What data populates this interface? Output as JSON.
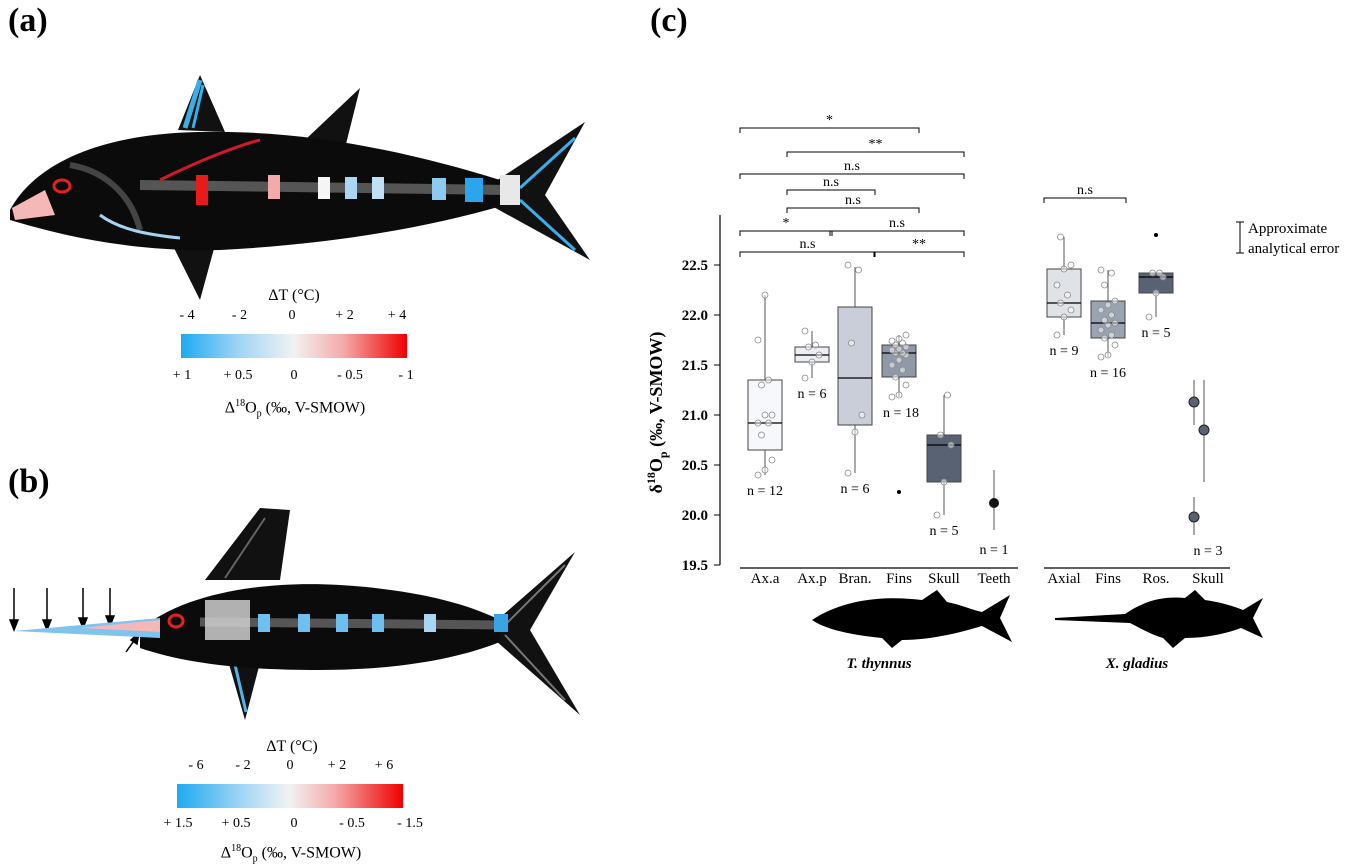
{
  "panels": {
    "a": "(a)",
    "b": "(b)",
    "c": "(c)"
  },
  "colorbar_a": {
    "top_title": "ΔT (°C)",
    "top_ticks": [
      "- 4",
      "- 2",
      "0",
      "+ 2",
      "+ 4"
    ],
    "bottom_ticks": [
      "+ 1",
      "+ 0.5",
      "0",
      "- 0.5",
      "- 1"
    ],
    "bottom_title_main": "Δ",
    "bottom_title_sup": "18",
    "bottom_title_rest": "O",
    "bottom_title_sub": "p",
    "bottom_title_unit": " (‰, V-SMOW)",
    "colors": [
      "#1eaaf0",
      "#ffffff",
      "#f00000"
    ]
  },
  "colorbar_b": {
    "top_title": "ΔT (°C)",
    "top_ticks": [
      "- 6",
      "- 2",
      "0",
      "+ 2",
      "+ 6"
    ],
    "bottom_ticks": [
      "+ 1.5",
      "+ 0.5",
      "0",
      "- 0.5",
      "- 1.5"
    ],
    "bottom_title_main": "Δ",
    "bottom_title_sup": "18",
    "bottom_title_rest": "O",
    "bottom_title_sub": "p",
    "bottom_title_unit": " (‰, V-SMOW)"
  },
  "chart_data": {
    "type": "box",
    "ylabel_main": "δ",
    "ylabel_sup": "18",
    "ylabel_rest": "O",
    "ylabel_sub": "p",
    "ylabel_unit": " (‰, V-SMOW)",
    "ylim": [
      19.5,
      22.75
    ],
    "yticks": [
      "19.5",
      "20.0",
      "20.5",
      "21.0",
      "21.5",
      "22.0",
      "22.5"
    ],
    "error_legend": "Approximate\nanalytical error",
    "groups": [
      {
        "species": "T. thynnus",
        "categories": [
          "Ax.a",
          "Ax.p",
          "Bran.",
          "Fins",
          "Skull",
          "Teeth"
        ],
        "boxes": [
          {
            "name": "Ax.a",
            "q1": 20.65,
            "median": 20.92,
            "q3": 21.35,
            "whisker_low": 20.4,
            "whisker_high": 22.2,
            "n": "n = 12",
            "color": "#f7f8fb",
            "points": [
              20.4,
              20.45,
              20.55,
              20.8,
              20.92,
              20.92,
              21.0,
              21.0,
              21.3,
              21.35,
              21.75,
              22.2
            ]
          },
          {
            "name": "Ax.p",
            "q1": 21.53,
            "median": 21.6,
            "q3": 21.68,
            "whisker_low": 21.37,
            "whisker_high": 21.84,
            "n": "n = 6",
            "color": "#eceef4",
            "points": [
              21.37,
              21.53,
              21.6,
              21.68,
              21.7,
              21.84
            ]
          },
          {
            "name": "Bran.",
            "q1": 20.9,
            "median": 21.37,
            "q3": 22.08,
            "whisker_low": 20.42,
            "whisker_high": 22.48,
            "n": "n = 6",
            "color": "#c9ced8",
            "points": [
              20.42,
              20.83,
              21.0,
              21.72,
              22.45,
              22.5
            ]
          },
          {
            "name": "Fins",
            "q1": 21.38,
            "median": 21.62,
            "q3": 21.7,
            "whisker_low": 21.18,
            "whisker_high": 21.8,
            "outliers": [
              20.23
            ],
            "n": "n = 18",
            "color": "#8f99a8",
            "points": [
              21.18,
              21.2,
              21.3,
              21.38,
              21.45,
              21.5,
              21.55,
              21.6,
              21.62,
              21.62,
              21.65,
              21.66,
              21.68,
              21.7,
              21.72,
              21.74,
              21.76,
              21.8
            ]
          },
          {
            "name": "Skull",
            "q1": 20.33,
            "median": 20.7,
            "q3": 20.8,
            "whisker_low": 20.0,
            "whisker_high": 21.2,
            "n": "n = 5",
            "color": "#586273",
            "points": [
              20.0,
              20.33,
              20.7,
              20.8,
              21.2
            ]
          },
          {
            "name": "Teeth",
            "point": 20.12,
            "err_low": 19.85,
            "err_high": 20.45,
            "n": "n = 1",
            "color": "#111111"
          }
        ],
        "brackets": [
          {
            "from": "Ax.a",
            "to": "Fins",
            "label": "*"
          },
          {
            "from": "Ax.p",
            "to": "Skull",
            "label": "**"
          },
          {
            "from": "Ax.a",
            "to": "Skull",
            "label": "n.s"
          },
          {
            "from": "Ax.p",
            "to": "Bran.",
            "label": "n.s"
          },
          {
            "from": "Ax.p",
            "to": "Fins",
            "label": "n.s"
          },
          {
            "from": "Ax.a",
            "to": "Ax.p",
            "label": "*"
          },
          {
            "from": "Bran.",
            "to": "Skull",
            "label": "n.s"
          },
          {
            "from": "Ax.a",
            "to": "Bran.",
            "label": "n.s"
          },
          {
            "from": "Fins",
            "to": "Skull",
            "label": "**"
          }
        ]
      },
      {
        "species": "X. gladius",
        "categories": [
          "Axial",
          "Fins",
          "Ros.",
          "Skull"
        ],
        "boxes": [
          {
            "name": "Axial",
            "q1": 21.98,
            "median": 22.12,
            "q3": 22.46,
            "whisker_low": 21.8,
            "whisker_high": 22.78,
            "n": "n = 9",
            "color": "#dfe2e6",
            "points": [
              21.8,
              21.98,
              22.05,
              22.12,
              22.2,
              22.3,
              22.46,
              22.5,
              22.78
            ]
          },
          {
            "name": "Fins",
            "q1": 21.77,
            "median": 21.92,
            "q3": 22.14,
            "whisker_low": 21.58,
            "whisker_high": 22.45,
            "n": "n = 16",
            "color": "#9aa3b1",
            "points": [
              21.58,
              21.6,
              21.7,
              21.77,
              21.8,
              21.85,
              21.9,
              21.92,
              21.95,
              22.0,
              22.05,
              22.1,
              22.14,
              22.3,
              22.42,
              22.45
            ]
          },
          {
            "name": "Ros.",
            "q1": 22.22,
            "median": 22.38,
            "q3": 22.42,
            "whisker_low": 21.98,
            "whisker_high": 22.42,
            "outliers": [
              22.8
            ],
            "n": "n = 5",
            "color": "#586273",
            "points": [
              21.98,
              22.22,
              22.38,
              22.42,
              22.42
            ]
          },
          {
            "name": "Skull",
            "skull_points": [
              {
                "value": 21.13,
                "err_low": 20.9,
                "err_high": 21.35
              },
              {
                "value": 20.85,
                "err_low": 20.33,
                "err_high": 21.35
              },
              {
                "value": 19.98,
                "err_low": 19.8,
                "err_high": 20.18
              }
            ],
            "n": "n = 3",
            "color": "#586273"
          }
        ],
        "brackets": [
          {
            "from": "Axial",
            "to": "Fins",
            "label": "n.s"
          }
        ]
      }
    ]
  }
}
